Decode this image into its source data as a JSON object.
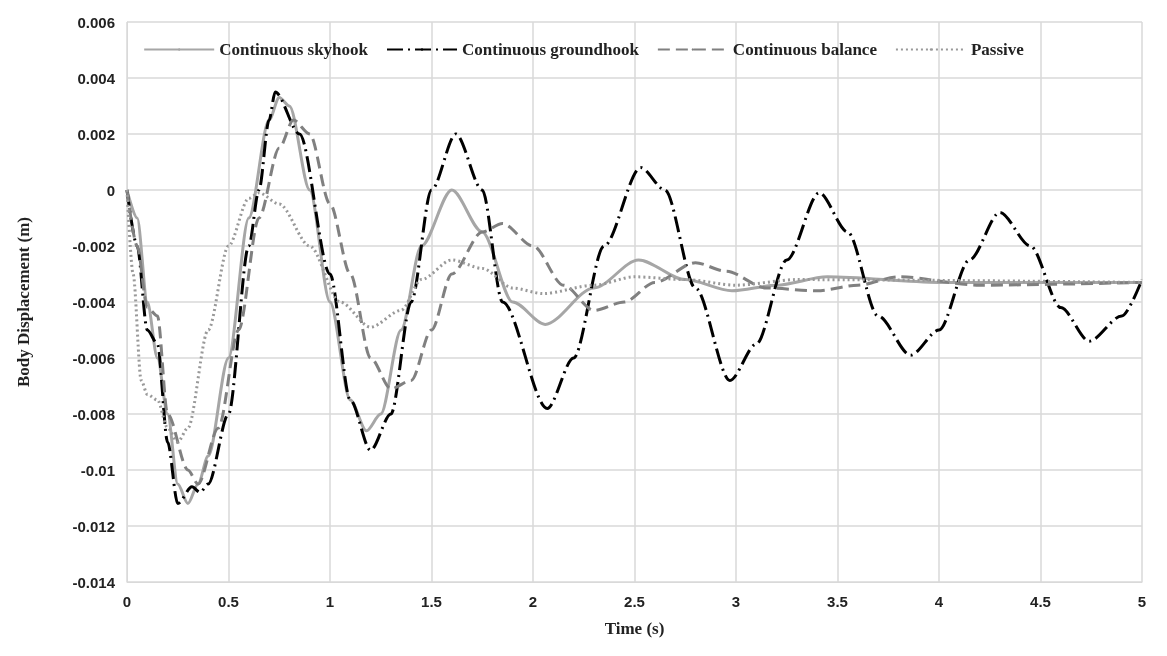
{
  "chart_data": {
    "type": "line",
    "xlabel": "Time (s)",
    "ylabel": "Body Displacement (m)",
    "xlim": [
      0,
      5
    ],
    "ylim": [
      -0.014,
      0.006
    ],
    "xticks": [
      0,
      0.5,
      1,
      1.5,
      2,
      2.5,
      3,
      3.5,
      4,
      4.5,
      5
    ],
    "yticks": [
      -0.014,
      -0.012,
      -0.01,
      -0.008,
      -0.006,
      -0.004,
      -0.002,
      0,
      0.002,
      0.004,
      0.006
    ],
    "grid": true,
    "legend": "top",
    "marker": "none",
    "series": [
      {
        "name": "Continuous skyhook",
        "color": "#a6a6a6",
        "line_style": "solid",
        "x": [
          0,
          0.05,
          0.1,
          0.15,
          0.2,
          0.25,
          0.3,
          0.35,
          0.4,
          0.5,
          0.6,
          0.7,
          0.75,
          0.8,
          0.9,
          1.0,
          1.1,
          1.18,
          1.25,
          1.35,
          1.45,
          1.6,
          1.75,
          1.9,
          2.06,
          2.3,
          2.52,
          2.75,
          2.98,
          3.2,
          3.45,
          4,
          5
        ],
        "values": [
          0,
          -0.001,
          -0.004,
          -0.006,
          -0.008,
          -0.0105,
          -0.0112,
          -0.0105,
          -0.0095,
          -0.006,
          -0.001,
          0.0025,
          0.0033,
          0.003,
          0,
          -0.004,
          -0.0075,
          -0.0086,
          -0.008,
          -0.005,
          -0.002,
          0,
          -0.0015,
          -0.004,
          -0.0048,
          -0.0035,
          -0.0025,
          -0.0032,
          -0.0036,
          -0.0034,
          -0.0031,
          -0.0033,
          -0.0033
        ]
      },
      {
        "name": "Continuous groundhook",
        "color": "#000000",
        "line_style": "dashdot",
        "x": [
          0,
          0.05,
          0.1,
          0.15,
          0.2,
          0.25,
          0.32,
          0.36,
          0.4,
          0.5,
          0.6,
          0.65,
          0.7,
          0.73,
          0.85,
          1.0,
          1.1,
          1.2,
          1.3,
          1.4,
          1.5,
          1.62,
          1.75,
          1.85,
          2.07,
          2.2,
          2.35,
          2.53,
          2.65,
          2.8,
          2.97,
          3.1,
          3.25,
          3.41,
          3.55,
          3.7,
          3.86,
          4.0,
          4.15,
          4.3,
          4.45,
          4.6,
          4.74,
          4.9,
          5.0
        ],
        "values": [
          0,
          -0.002,
          -0.005,
          -0.0055,
          -0.009,
          -0.0112,
          -0.0106,
          -0.0108,
          -0.0105,
          -0.008,
          -0.002,
          0,
          0.0025,
          0.0035,
          0.002,
          -0.003,
          -0.0075,
          -0.0093,
          -0.008,
          -0.004,
          0,
          0.002,
          0,
          -0.004,
          -0.0078,
          -0.006,
          -0.002,
          0.0008,
          0,
          -0.0035,
          -0.0068,
          -0.0055,
          -0.0025,
          -0.0001,
          -0.0015,
          -0.0045,
          -0.0059,
          -0.005,
          -0.0025,
          -0.0008,
          -0.002,
          -0.0042,
          -0.0054,
          -0.0045,
          -0.0032
        ]
      },
      {
        "name": "Continuous balance",
        "color": "#808080",
        "line_style": "dashed",
        "x": [
          0,
          0.05,
          0.1,
          0.15,
          0.2,
          0.3,
          0.35,
          0.45,
          0.55,
          0.65,
          0.75,
          0.82,
          0.9,
          1.0,
          1.1,
          1.2,
          1.3,
          1.4,
          1.5,
          1.6,
          1.75,
          1.85,
          2.0,
          2.15,
          2.3,
          2.45,
          2.6,
          2.8,
          2.95,
          3.15,
          3.4,
          3.6,
          3.8,
          4.2,
          5
        ],
        "values": [
          0,
          -0.002,
          -0.0042,
          -0.0045,
          -0.008,
          -0.01,
          -0.0105,
          -0.0085,
          -0.005,
          -0.001,
          0.0015,
          0.0025,
          0.002,
          -0.0005,
          -0.003,
          -0.006,
          -0.0071,
          -0.0068,
          -0.005,
          -0.003,
          -0.0015,
          -0.0012,
          -0.002,
          -0.0034,
          -0.0043,
          -0.004,
          -0.0033,
          -0.0026,
          -0.0029,
          -0.0035,
          -0.0036,
          -0.0034,
          -0.0031,
          -0.0034,
          -0.0033
        ]
      },
      {
        "name": "Passive",
        "color": "#999999",
        "line_style": "dotted",
        "x": [
          0,
          0.03,
          0.07,
          0.1,
          0.15,
          0.2,
          0.25,
          0.3,
          0.4,
          0.5,
          0.6,
          0.65,
          0.75,
          0.9,
          1.05,
          1.2,
          1.35,
          1.45,
          1.6,
          1.75,
          1.9,
          2.05,
          2.3,
          2.5,
          2.75,
          3,
          3.3,
          5
        ],
        "values": [
          0,
          -0.003,
          -0.0068,
          -0.0073,
          -0.0075,
          -0.0085,
          -0.009,
          -0.0085,
          -0.005,
          -0.002,
          -0.0003,
          -0.0001,
          -0.0005,
          -0.002,
          -0.004,
          -0.0049,
          -0.0043,
          -0.0032,
          -0.0025,
          -0.0028,
          -0.0035,
          -0.0037,
          -0.0034,
          -0.0031,
          -0.0032,
          -0.0034,
          -0.0032,
          -0.0033
        ]
      }
    ]
  }
}
